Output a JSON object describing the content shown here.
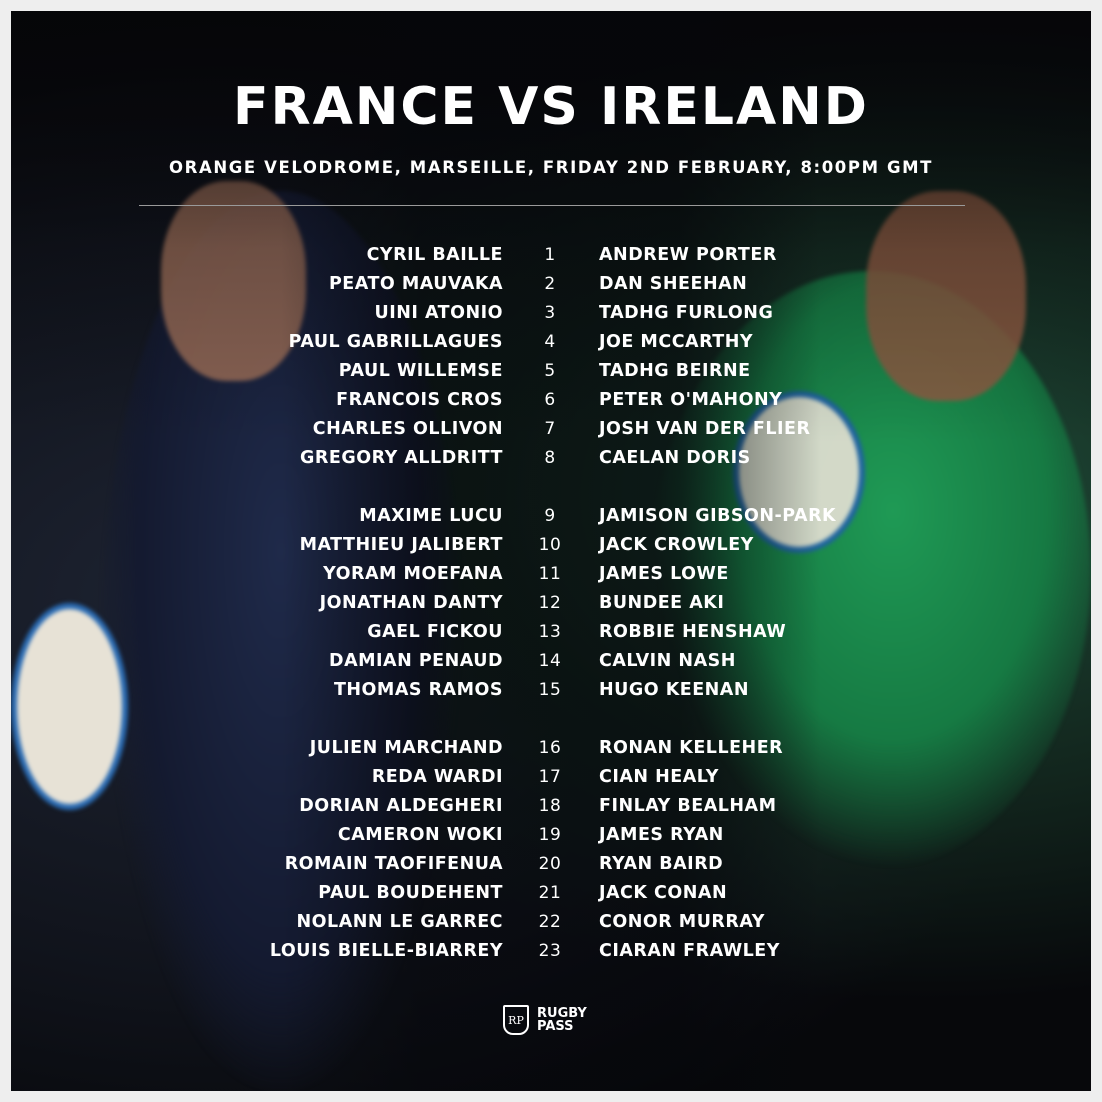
{
  "title": "FRANCE VS IRELAND",
  "subtitle": "ORANGE VELODROME, MARSEILLE, FRIDAY 2ND FEBRUARY, 8:00PM GMT",
  "colors": {
    "france": "#1f2a4a",
    "ireland": "#1f9a55",
    "background": "#07080b",
    "text": "#ffffff"
  },
  "lineups": [
    {
      "n": "1",
      "fr": "CYRIL BAILLE",
      "ie": "ANDREW PORTER"
    },
    {
      "n": "2",
      "fr": "PEATO MAUVAKA",
      "ie": "DAN SHEEHAN"
    },
    {
      "n": "3",
      "fr": "UINI ATONIO",
      "ie": "TADHG FURLONG"
    },
    {
      "n": "4",
      "fr": "PAUL GABRILLAGUES",
      "ie": "JOE MCCARTHY"
    },
    {
      "n": "5",
      "fr": "PAUL WILLEMSE",
      "ie": "TADHG BEIRNE"
    },
    {
      "n": "6",
      "fr": "FRANCOIS CROS",
      "ie": "PETER O'MAHONY"
    },
    {
      "n": "7",
      "fr": "CHARLES OLLIVON",
      "ie": "JOSH VAN DER FLIER"
    },
    {
      "n": "8",
      "fr": "GREGORY ALLDRITT",
      "ie": "CAELAN DORIS"
    },
    {
      "n": "9",
      "fr": "MAXIME LUCU",
      "ie": "JAMISON GIBSON-PARK"
    },
    {
      "n": "10",
      "fr": "MATTHIEU JALIBERT",
      "ie": "JACK CROWLEY"
    },
    {
      "n": "11",
      "fr": "YORAM MOEFANA",
      "ie": "JAMES LOWE"
    },
    {
      "n": "12",
      "fr": "JONATHAN DANTY",
      "ie": "BUNDEE AKI"
    },
    {
      "n": "13",
      "fr": "GAEL FICKOU",
      "ie": "ROBBIE HENSHAW"
    },
    {
      "n": "14",
      "fr": "DAMIAN PENAUD",
      "ie": "CALVIN NASH"
    },
    {
      "n": "15",
      "fr": "THOMAS RAMOS",
      "ie": "HUGO KEENAN"
    },
    {
      "n": "16",
      "fr": "JULIEN MARCHAND",
      "ie": "RONAN KELLEHER"
    },
    {
      "n": "17",
      "fr": "REDA WARDI",
      "ie": "CIAN HEALY"
    },
    {
      "n": "18",
      "fr": "DORIAN ALDEGHERI",
      "ie": "FINLAY BEALHAM"
    },
    {
      "n": "19",
      "fr": "CAMERON WOKI",
      "ie": "JAMES RYAN"
    },
    {
      "n": "20",
      "fr": "ROMAIN TAOFIFENUA",
      "ie": "RYAN BAIRD"
    },
    {
      "n": "21",
      "fr": "PAUL BOUDEHENT",
      "ie": "JACK CONAN"
    },
    {
      "n": "22",
      "fr": "NOLANN LE GARREC",
      "ie": "CONOR MURRAY"
    },
    {
      "n": "23",
      "fr": "LOUIS BIELLE-BIARREY",
      "ie": "CIARAN FRAWLEY"
    }
  ],
  "logo": {
    "line1": "RUGBY",
    "line2": "PASS",
    "mark": "RP"
  }
}
